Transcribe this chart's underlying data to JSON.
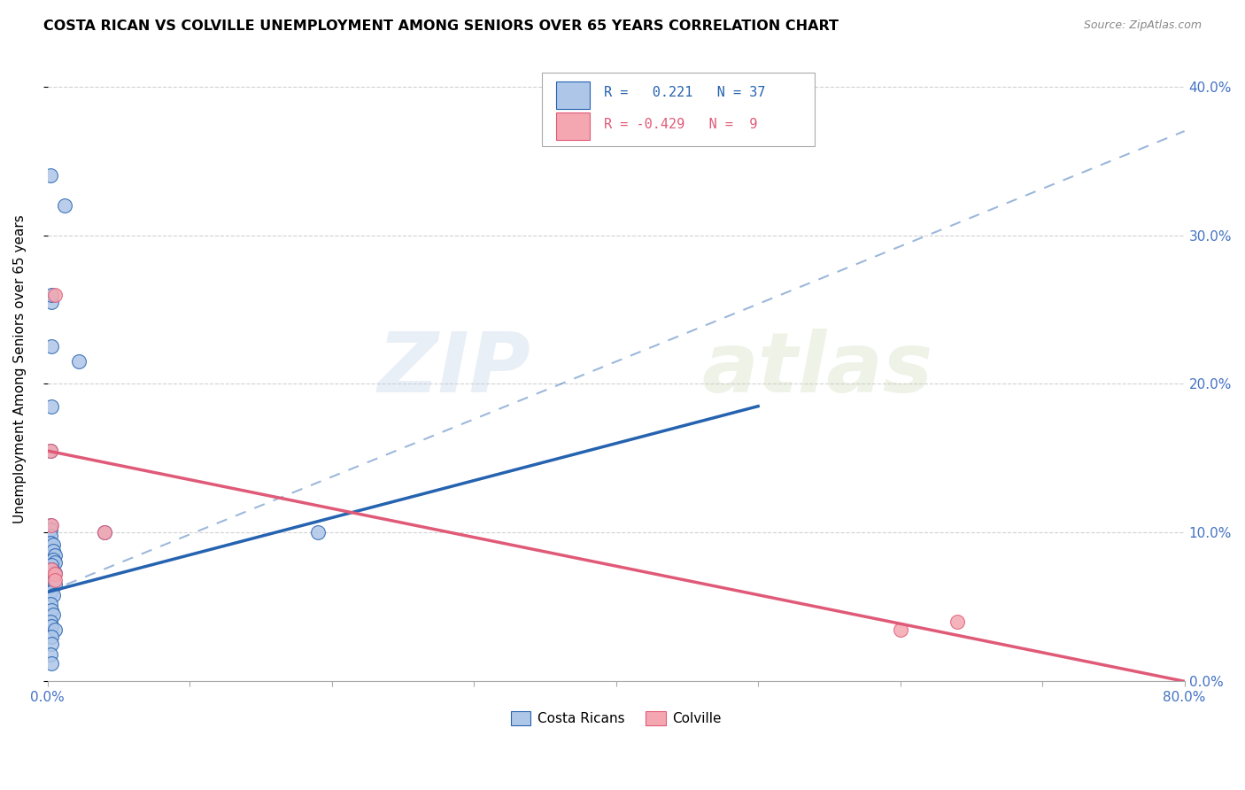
{
  "title": "COSTA RICAN VS COLVILLE UNEMPLOYMENT AMONG SENIORS OVER 65 YEARS CORRELATION CHART",
  "source": "Source: ZipAtlas.com",
  "ylabel": "Unemployment Among Seniors over 65 years",
  "xmin": 0.0,
  "xmax": 0.8,
  "ymin": 0.0,
  "ymax": 0.42,
  "grid_color": "#cccccc",
  "background_color": "#ffffff",
  "costa_rican_color": "#aec6e8",
  "costa_rican_line_color": "#2563b0",
  "colville_color": "#f4a7b0",
  "colville_line_color": "#e05a78",
  "costa_rican_R": 0.221,
  "costa_rican_N": 37,
  "colville_R": -0.429,
  "colville_N": 9,
  "costa_rican_scatter": [
    [
      0.002,
      0.34
    ],
    [
      0.012,
      0.32
    ],
    [
      0.003,
      0.255
    ],
    [
      0.003,
      0.26
    ],
    [
      0.003,
      0.225
    ],
    [
      0.022,
      0.215
    ],
    [
      0.003,
      0.185
    ],
    [
      0.002,
      0.155
    ],
    [
      0.002,
      0.105
    ],
    [
      0.002,
      0.102
    ],
    [
      0.002,
      0.098
    ],
    [
      0.002,
      0.093
    ],
    [
      0.004,
      0.092
    ],
    [
      0.004,
      0.088
    ],
    [
      0.005,
      0.085
    ],
    [
      0.004,
      0.082
    ],
    [
      0.005,
      0.08
    ],
    [
      0.003,
      0.078
    ],
    [
      0.003,
      0.075
    ],
    [
      0.005,
      0.073
    ],
    [
      0.003,
      0.07
    ],
    [
      0.004,
      0.067
    ],
    [
      0.005,
      0.065
    ],
    [
      0.002,
      0.06
    ],
    [
      0.004,
      0.058
    ],
    [
      0.002,
      0.052
    ],
    [
      0.003,
      0.048
    ],
    [
      0.004,
      0.045
    ],
    [
      0.002,
      0.04
    ],
    [
      0.003,
      0.037
    ],
    [
      0.005,
      0.035
    ],
    [
      0.003,
      0.03
    ],
    [
      0.003,
      0.025
    ],
    [
      0.002,
      0.018
    ],
    [
      0.003,
      0.012
    ],
    [
      0.04,
      0.1
    ],
    [
      0.19,
      0.1
    ]
  ],
  "colville_scatter": [
    [
      0.002,
      0.155
    ],
    [
      0.003,
      0.105
    ],
    [
      0.003,
      0.075
    ],
    [
      0.005,
      0.26
    ],
    [
      0.005,
      0.072
    ],
    [
      0.005,
      0.068
    ],
    [
      0.04,
      0.1
    ],
    [
      0.6,
      0.035
    ],
    [
      0.64,
      0.04
    ]
  ],
  "blue_solid_line": [
    [
      0.0,
      0.06
    ],
    [
      0.5,
      0.185
    ]
  ],
  "blue_dashed_line": [
    [
      0.0,
      0.06
    ],
    [
      0.8,
      0.37
    ]
  ],
  "pink_solid_line": [
    [
      0.0,
      0.155
    ],
    [
      0.8,
      0.0
    ]
  ],
  "watermark_zip": "ZIP",
  "watermark_atlas": "atlas",
  "right_ytick_color": "#4472c4",
  "xtick_color": "#4472c4"
}
